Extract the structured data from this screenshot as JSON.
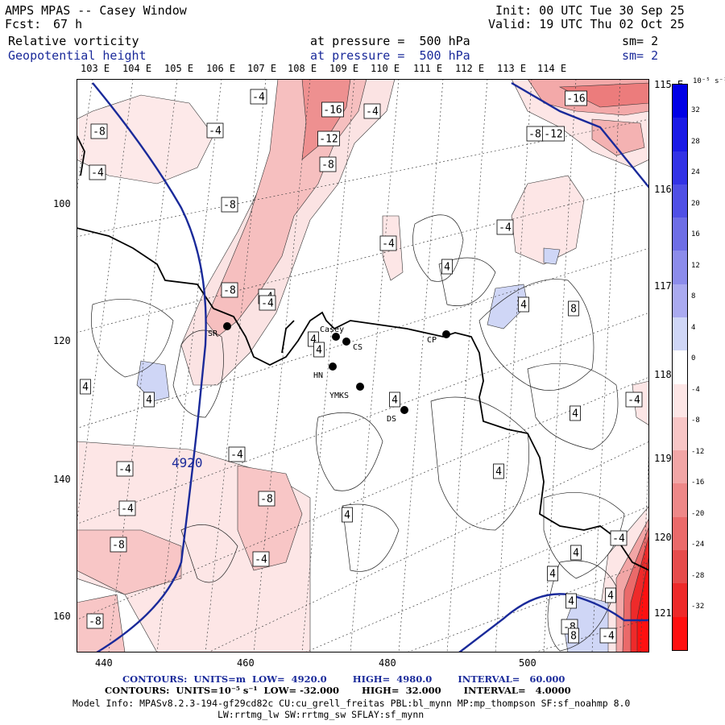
{
  "header": {
    "title": "AMPS MPAS -- Casey Window",
    "forecast_label": "Fcst:",
    "forecast_value": "67 h",
    "init": "Init: 00 UTC Tue 30 Sep 25",
    "valid": "Valid: 19 UTC Thu 02 Oct 25",
    "field1_name": "Relative vorticity",
    "field1_level": "at pressure =  500 hPa",
    "field1_smooth": "sm= 2",
    "field2_name": "Geopotential height",
    "field2_level": "at pressure =  500 hPa",
    "field2_smooth": "sm= 2"
  },
  "top_longitudes": [
    "103 E",
    "104 E",
    "105 E",
    "106 E",
    "107 E",
    "108 E",
    "109 E",
    "110 E",
    "111 E",
    "112 E",
    "113 E",
    "114 E"
  ],
  "right_longitudes": [
    "115 E",
    "116 E",
    "117 E",
    "118 E",
    "119 E",
    "120 E",
    "121 E"
  ],
  "x_ticks": [
    "440",
    "460",
    "480",
    "500"
  ],
  "y_ticks": [
    "100",
    "120",
    "140",
    "160"
  ],
  "colorbar": {
    "units": "10⁻⁵ s⁻¹",
    "labels": [
      "32",
      "28",
      "24",
      "20",
      "16",
      "12",
      "8",
      "4",
      "0",
      "-4",
      "-8",
      "-12",
      "-16",
      "-20",
      "-24",
      "-28",
      "-32"
    ],
    "colors": [
      "#0000e6",
      "#1a1ae6",
      "#3333e6",
      "#5050e6",
      "#6e6ee6",
      "#8c8ceb",
      "#aaaaf0",
      "#cfd6f6",
      "#ffffff",
      "#fde6e6",
      "#f8c6c6",
      "#f2a6a6",
      "#ee8888",
      "#ea6a6a",
      "#e64c4c",
      "#ee2a2a",
      "#ff1010"
    ]
  },
  "stations": [
    {
      "code": "SR"
    },
    {
      "code": "Casey"
    },
    {
      "code": "CS"
    },
    {
      "code": "HN"
    },
    {
      "code": "YMKS"
    },
    {
      "code": "DS"
    },
    {
      "code": "CP"
    }
  ],
  "contour_labels": [
    "-4",
    "-16",
    "-4",
    "-12",
    "-16",
    "-8",
    "-8",
    "-4",
    "-12",
    "-8",
    "-4",
    "-8",
    "-4",
    "-4",
    "-4",
    "4",
    "-8",
    "-4",
    "4",
    "8",
    "4",
    "4",
    "4",
    "4",
    "4",
    "-4",
    "4",
    "-4",
    "-4",
    "-8",
    "-4",
    "-4",
    "4",
    "4",
    "-8",
    "-4",
    "4",
    "4",
    "-8",
    "-8",
    "4",
    "8",
    "-4",
    "4"
  ],
  "height_contour_label": "4920",
  "footer": {
    "line1": "CONTOURS:  UNITS=m  LOW=  4920.0        HIGH=  4980.0        INTERVAL=   60.000",
    "line2": "CONTOURS:  UNITS=10⁻⁵ s⁻¹  LOW= -32.000       HIGH=  32.000       INTERVAL=   4.0000",
    "line3": "Model Info: MPASv8.2.3-194-gf29cd82c CU:cu_grell_freitas PBL:bl_mynn MP:mp_thompson SF:sf_noahmp 8.0",
    "line4": "LW:rrtmg_lw SW:rrtmg_sw SFLAY:sf_mynn"
  }
}
